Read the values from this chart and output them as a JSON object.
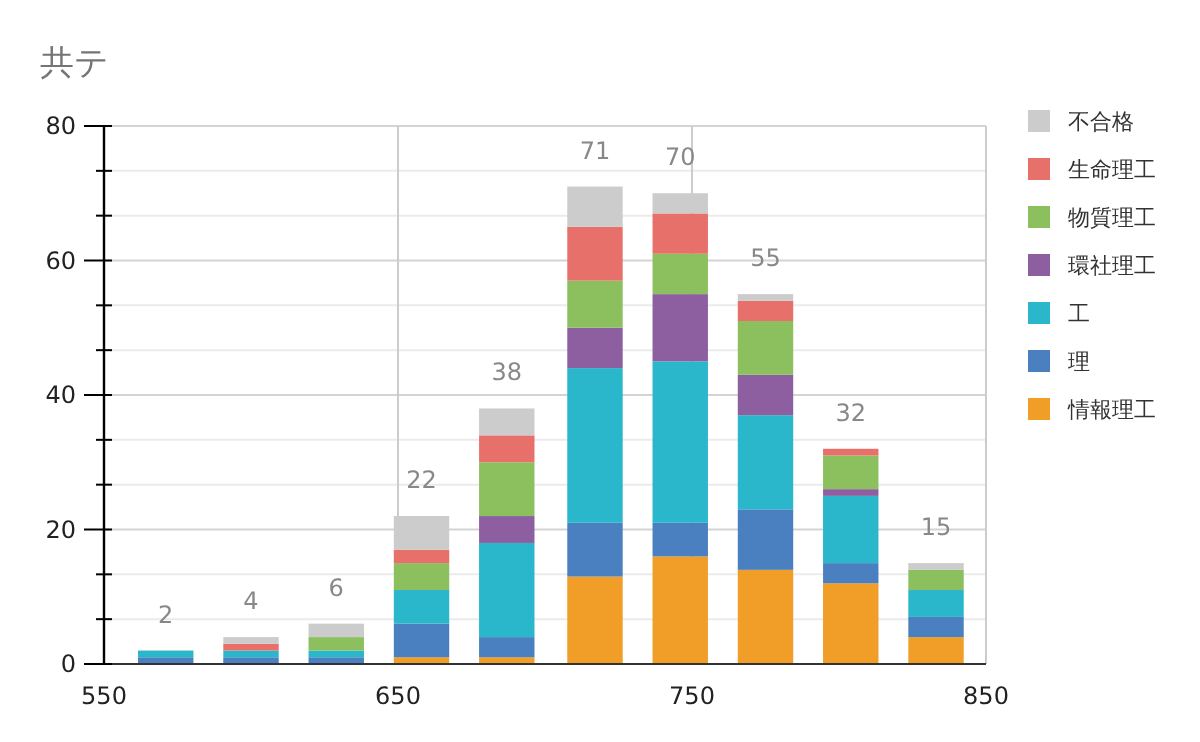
{
  "chart_data": {
    "type": "bar",
    "title": "共テ",
    "stacked": true,
    "x": [
      571,
      600,
      629,
      658,
      687,
      717,
      746,
      775,
      804,
      833
    ],
    "xlim": [
      550,
      850
    ],
    "xticks": [
      550,
      650,
      750,
      850
    ],
    "ylim": [
      0,
      80
    ],
    "yticks": [
      0,
      {
        "value": 6.667,
        "label": null
      },
      {
        "value": 13.333,
        "label": null
      },
      20,
      {
        "value": 26.667,
        "label": null
      },
      {
        "value": 33.333,
        "label": null
      },
      40,
      {
        "value": 46.667,
        "label": null
      },
      {
        "value": 53.333,
        "label": null
      },
      60,
      {
        "value": 66.667,
        "label": null
      },
      {
        "value": 73.333,
        "label": null
      },
      80
    ],
    "grid": true,
    "legend": "right",
    "totals": [
      "2",
      "4",
      "6",
      "22",
      "38",
      "71",
      "70",
      "55",
      "32",
      "15"
    ],
    "series": [
      {
        "name": "情報理工",
        "color": "#f09e27",
        "values": [
          0,
          0,
          0,
          1,
          1,
          13,
          16,
          14,
          12,
          4
        ]
      },
      {
        "name": "理",
        "color": "#4a80bf",
        "values": [
          1,
          1,
          1,
          5,
          3,
          8,
          5,
          9,
          3,
          3
        ]
      },
      {
        "name": "工",
        "color": "#2bb7cb",
        "values": [
          1,
          1,
          1,
          5,
          14,
          23,
          24,
          14,
          10,
          4
        ]
      },
      {
        "name": "環社理工",
        "color": "#8e5fa0",
        "values": [
          0,
          0,
          0,
          0,
          4,
          6,
          10,
          6,
          1,
          0
        ]
      },
      {
        "name": "物質理工",
        "color": "#8cc05f",
        "values": [
          0,
          0,
          2,
          4,
          8,
          7,
          6,
          8,
          5,
          3
        ]
      },
      {
        "name": "生命理工",
        "color": "#e8706a",
        "values": [
          0,
          1,
          0,
          2,
          4,
          8,
          6,
          3,
          1,
          0
        ]
      },
      {
        "name": "不合格",
        "color": "#cccccc",
        "values": [
          0,
          1,
          2,
          5,
          4,
          6,
          3,
          1,
          0,
          1
        ]
      }
    ]
  }
}
